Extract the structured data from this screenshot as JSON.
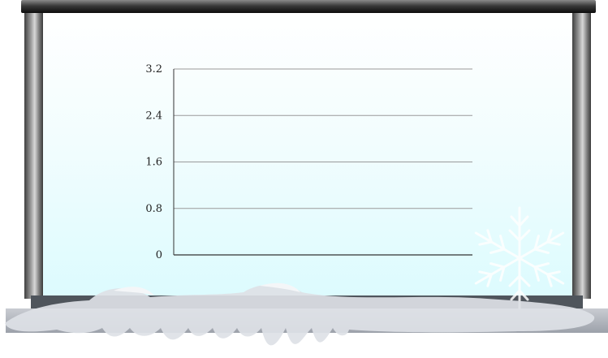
{
  "chart_data": {
    "type": "bar",
    "categories": [],
    "series": [],
    "title": "",
    "xlabel": "",
    "ylabel": "",
    "ylim": [
      0,
      3.2
    ],
    "yticks": [
      "0",
      "0.8",
      "1.6",
      "2.4",
      "3.2"
    ],
    "grid": true
  },
  "colors": {
    "gridline": "#9a9a9a",
    "axis": "#333333",
    "board_top": "#ffffff",
    "board_bottom": "#dcfbfe",
    "snow": "#dde1e6"
  },
  "decor": {
    "frame": "projector-screen-frame",
    "snowflake_icon": "snowflake-icon"
  }
}
